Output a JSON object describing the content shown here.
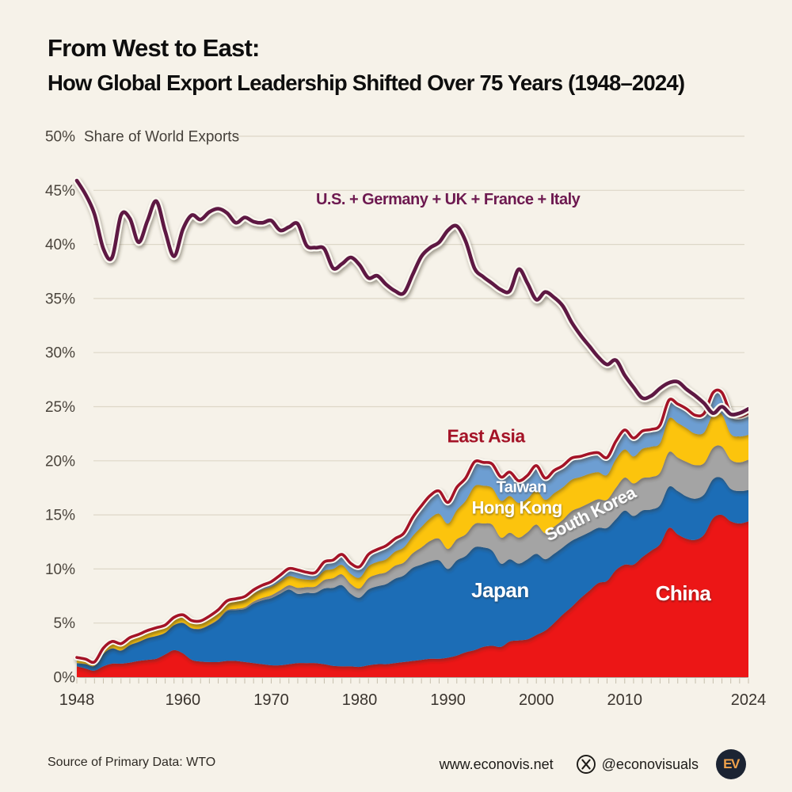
{
  "header": {
    "title_line1": "From West to East:",
    "title_line2": "How Global Export Leadership Shifted Over 75 Years (1948–2024)"
  },
  "footer": {
    "source": "Source of Primary Data: WTO",
    "website": "www.econovis.net",
    "x_handle": "@econovisuals",
    "logo_text": "EV"
  },
  "style": {
    "page_bg": "#f6f2e9",
    "grid_color": "#ddd7c8",
    "axis_label_color": "#4a443c",
    "x_label_color": "#3a342e",
    "tick_color": "#c6bfad"
  },
  "chart_data": {
    "type": "area",
    "stacked": true,
    "title": "Share of World Exports",
    "top_axis_label": "50%",
    "x_range": [
      1948,
      2024
    ],
    "ylim": [
      0,
      50
    ],
    "grid": true,
    "y_tick_labels": [
      "0%",
      "5%",
      "10%",
      "15%",
      "20%",
      "25%",
      "30%",
      "35%",
      "40%",
      "45%",
      "50%"
    ],
    "x_tick_labels": [
      "1948",
      "1960",
      "1970",
      "1980",
      "1990",
      "2000",
      "2010",
      "2024"
    ],
    "x_tick_years": [
      1948,
      1960,
      1970,
      1980,
      1990,
      2000,
      2010,
      2024
    ],
    "series": [
      {
        "name": "China",
        "color": "#ec1313",
        "values": [
          1.0,
          0.8,
          0.6,
          1.0,
          1.25,
          1.25,
          1.35,
          1.5,
          1.6,
          1.7,
          2.1,
          2.5,
          2.2,
          1.6,
          1.45,
          1.4,
          1.4,
          1.5,
          1.5,
          1.4,
          1.3,
          1.2,
          1.1,
          1.1,
          1.2,
          1.3,
          1.3,
          1.3,
          1.2,
          1.05,
          1.0,
          1.0,
          0.95,
          1.1,
          1.2,
          1.2,
          1.3,
          1.4,
          1.5,
          1.6,
          1.7,
          1.7,
          1.8,
          2.0,
          2.3,
          2.5,
          2.8,
          2.9,
          2.8,
          3.3,
          3.4,
          3.5,
          3.9,
          4.3,
          5.0,
          5.8,
          6.5,
          7.3,
          8.0,
          8.7,
          8.9,
          9.9,
          10.4,
          10.4,
          11.1,
          11.7,
          12.3,
          13.8,
          13.2,
          12.8,
          12.7,
          13.2,
          14.7,
          15.0,
          14.4,
          14.2,
          14.4
        ]
      },
      {
        "name": "Japan",
        "color": "#1f6db6",
        "values": [
          0.3,
          0.4,
          0.45,
          1.15,
          1.4,
          1.2,
          1.6,
          1.75,
          2.0,
          2.1,
          2.0,
          2.3,
          2.8,
          2.9,
          3.0,
          3.4,
          3.9,
          4.6,
          4.7,
          4.9,
          5.5,
          5.9,
          6.2,
          6.6,
          6.9,
          6.4,
          6.5,
          6.5,
          7.0,
          7.2,
          7.5,
          6.7,
          6.4,
          7.0,
          7.2,
          7.4,
          7.8,
          8.0,
          8.6,
          8.8,
          9.0,
          9.1,
          8.2,
          8.8,
          8.9,
          9.5,
          9.2,
          8.8,
          7.7,
          7.6,
          7.1,
          7.4,
          7.5,
          6.6,
          6.4,
          6.2,
          6.1,
          5.7,
          5.4,
          5.1,
          4.9,
          4.7,
          5.0,
          4.5,
          4.3,
          3.8,
          3.6,
          3.8,
          4.0,
          3.9,
          3.8,
          3.7,
          3.6,
          3.4,
          3.0,
          3.0,
          2.9
        ]
      },
      {
        "name": "South Korea",
        "color": "#a4a4a4",
        "values": [
          0.02,
          0.02,
          0.01,
          0.02,
          0.02,
          0.02,
          0.02,
          0.02,
          0.02,
          0.02,
          0.02,
          0.02,
          0.03,
          0.04,
          0.05,
          0.06,
          0.07,
          0.09,
          0.12,
          0.15,
          0.19,
          0.23,
          0.27,
          0.32,
          0.39,
          0.56,
          0.53,
          0.58,
          0.78,
          0.9,
          1.0,
          0.92,
          0.86,
          1.05,
          1.1,
          1.1,
          1.2,
          1.2,
          1.35,
          1.6,
          1.9,
          2.0,
          1.85,
          1.95,
          2.0,
          2.15,
          2.2,
          2.4,
          2.4,
          2.45,
          2.4,
          2.5,
          2.7,
          2.4,
          2.5,
          2.55,
          2.75,
          2.7,
          2.7,
          2.65,
          2.6,
          2.9,
          3.05,
          3.0,
          3.0,
          3.0,
          3.0,
          3.2,
          3.1,
          3.2,
          3.1,
          2.9,
          2.9,
          2.9,
          2.7,
          2.65,
          2.8
        ]
      },
      {
        "name": "Hong Kong",
        "color": "#fcc40d",
        "values": [
          0.45,
          0.4,
          0.3,
          0.45,
          0.55,
          0.55,
          0.6,
          0.6,
          0.6,
          0.65,
          0.6,
          0.6,
          0.6,
          0.55,
          0.55,
          0.6,
          0.6,
          0.6,
          0.65,
          0.7,
          0.75,
          0.78,
          0.8,
          0.82,
          0.85,
          0.88,
          0.7,
          0.7,
          0.85,
          0.85,
          0.88,
          0.93,
          1.0,
          1.1,
          1.15,
          1.2,
          1.3,
          1.4,
          1.6,
          1.9,
          2.1,
          2.3,
          2.35,
          2.7,
          3.1,
          3.5,
          3.5,
          3.4,
          3.4,
          3.4,
          3.2,
          3.1,
          3.15,
          3.1,
          3.1,
          3.0,
          2.9,
          2.8,
          2.7,
          2.5,
          2.3,
          2.65,
          2.6,
          2.5,
          2.7,
          2.8,
          2.75,
          3.1,
          3.2,
          3.1,
          2.9,
          2.85,
          3.1,
          3.0,
          2.4,
          2.4,
          2.3
        ]
      },
      {
        "name": "Taiwan",
        "color": "#6d9ed2",
        "values": [
          0.05,
          0.05,
          0.05,
          0.07,
          0.08,
          0.08,
          0.08,
          0.08,
          0.09,
          0.1,
          0.1,
          0.11,
          0.13,
          0.14,
          0.15,
          0.18,
          0.25,
          0.26,
          0.28,
          0.3,
          0.33,
          0.39,
          0.46,
          0.58,
          0.7,
          0.77,
          0.67,
          0.6,
          0.82,
          0.83,
          0.97,
          0.97,
          1.0,
          1.1,
          1.15,
          1.25,
          1.2,
          1.3,
          1.7,
          1.95,
          2.1,
          2.1,
          1.95,
          2.1,
          2.1,
          2.25,
          2.15,
          2.2,
          2.2,
          2.2,
          2.05,
          2.15,
          2.3,
          2.0,
          2.1,
          2.0,
          2.0,
          1.9,
          1.85,
          1.8,
          1.6,
          1.65,
          1.8,
          1.7,
          1.65,
          1.6,
          1.65,
          1.7,
          1.75,
          1.8,
          1.7,
          1.75,
          2.0,
          2.0,
          1.9,
          1.85,
          2.0
        ]
      }
    ],
    "east_asia_line": {
      "label": "East Asia",
      "color": "#a41327",
      "derived": "sum of stacked series"
    },
    "west_line": {
      "label": "U.S. + Germany + UK + France + Italy",
      "color": "#5e1843",
      "values": [
        45.9,
        44.6,
        42.8,
        39.6,
        38.8,
        42.7,
        42.4,
        40.2,
        42.2,
        44.0,
        41.2,
        38.9,
        41.4,
        42.7,
        42.3,
        43.0,
        43.3,
        42.9,
        42.0,
        42.5,
        42.1,
        42.0,
        42.2,
        41.3,
        41.6,
        41.9,
        39.9,
        39.7,
        39.6,
        37.8,
        38.2,
        38.8,
        38.1,
        36.9,
        37.1,
        36.3,
        35.7,
        35.5,
        37.2,
        38.9,
        39.7,
        40.2,
        41.3,
        41.7,
        40.3,
        37.8,
        37.0,
        36.4,
        35.8,
        35.7,
        37.7,
        36.4,
        34.9,
        35.6,
        35.1,
        34.3,
        32.8,
        31.6,
        30.6,
        29.6,
        28.9,
        29.3,
        27.9,
        26.8,
        25.8,
        26.0,
        26.7,
        27.2,
        27.3,
        26.6,
        26.0,
        25.3,
        24.4,
        25.0,
        24.3,
        24.4,
        24.8
      ]
    },
    "legend_position": "labels-on-chart",
    "annotations": [
      {
        "text": "U.S. + Germany + UK + France + Italy",
        "year": 1990.0,
        "pct": 43.7,
        "color": "#6d1950",
        "size": 20,
        "weight": 700,
        "shadow": false
      },
      {
        "text": "East Asia",
        "year": 1994.3,
        "pct": 21.7,
        "color": "#a41327",
        "size": 23,
        "weight": 700,
        "shadow": false
      },
      {
        "text": "Taiwan",
        "year": 1998.3,
        "pct": 17.1,
        "color": "#ffffff",
        "size": 20,
        "weight": 700,
        "shadow": true
      },
      {
        "text": "Hong Kong",
        "year": 1997.8,
        "pct": 15.1,
        "color": "#ffffff",
        "size": 22,
        "weight": 700,
        "shadow": true
      },
      {
        "text": "South Korea",
        "year": 2006.4,
        "pct": 14.6,
        "color": "#ffffff",
        "size": 22,
        "weight": 700,
        "rotate": -27,
        "shadow": true
      },
      {
        "text": "Japan",
        "year": 1995.9,
        "pct": 7.4,
        "color": "#ffffff",
        "size": 26,
        "weight": 700,
        "shadow": true
      },
      {
        "text": "China",
        "year": 2016.6,
        "pct": 7.1,
        "color": "#ffffff",
        "size": 26,
        "weight": 700,
        "shadow": true
      }
    ]
  }
}
